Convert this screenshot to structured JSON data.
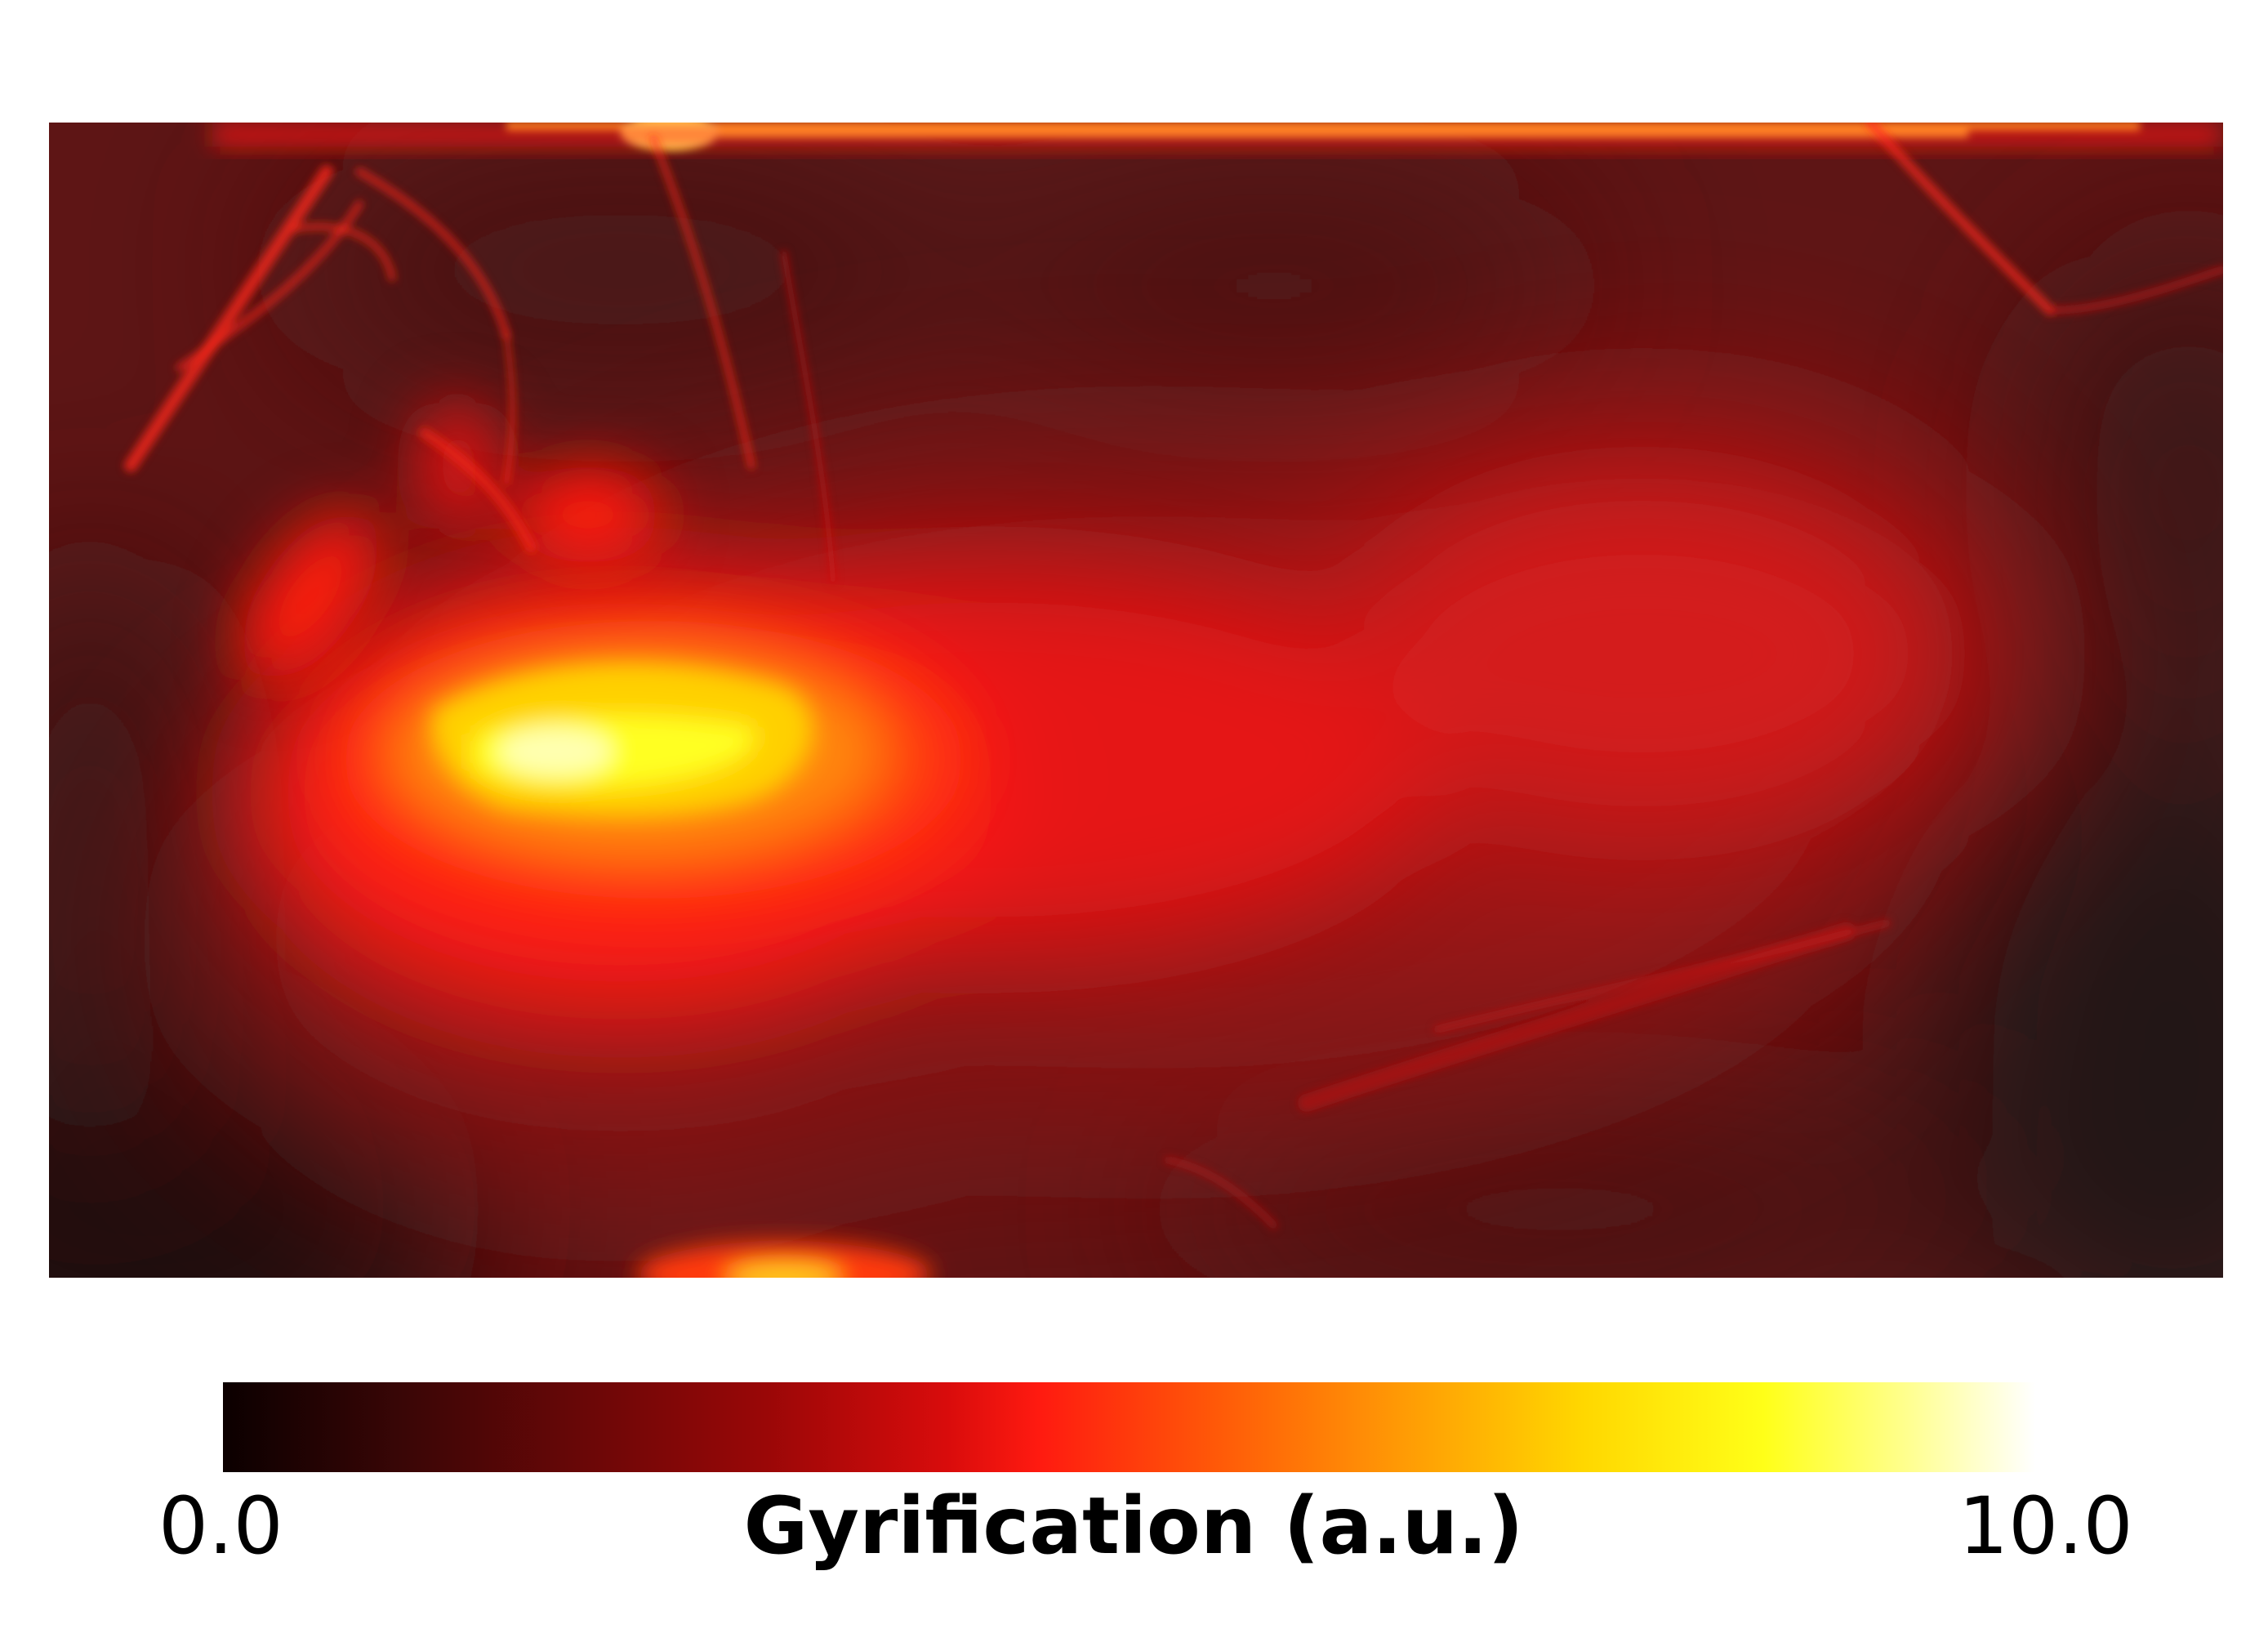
{
  "chart_data": {
    "type": "heatmap",
    "title": "",
    "xlabel": "",
    "ylabel": "",
    "colormap": "hot",
    "colorbar": {
      "label": "Gyrification (a.u.)",
      "min_label": "0.0",
      "max_label": "10.0",
      "range": [
        0.0,
        10.0
      ],
      "orientation": "horizontal",
      "stops": [
        {
          "value": 0.0,
          "color": "#0b0000"
        },
        {
          "value": 1.0,
          "color": "#3a0606"
        },
        {
          "value": 2.0,
          "color": "#6a0707"
        },
        {
          "value": 3.0,
          "color": "#9a0707"
        },
        {
          "value": 4.0,
          "color": "#d90c0c"
        },
        {
          "value": 4.5,
          "color": "#ff1a10"
        },
        {
          "value": 5.5,
          "color": "#ff5a08"
        },
        {
          "value": 6.5,
          "color": "#ff9a05"
        },
        {
          "value": 7.5,
          "color": "#ffd700"
        },
        {
          "value": 8.5,
          "color": "#ffff18"
        },
        {
          "value": 9.3,
          "color": "#ffff90"
        },
        {
          "value": 10.0,
          "color": "#ffffff"
        }
      ]
    },
    "regions": [
      {
        "name": "left-hotspot-core",
        "value": 8.8
      },
      {
        "name": "left-hotspot-halo",
        "value": 6.5
      },
      {
        "name": "central-band",
        "value": 4.5
      },
      {
        "name": "right-central-region",
        "value": 4.0
      },
      {
        "name": "top-edge-ridge",
        "value": 8.5
      },
      {
        "name": "bottom-edge-spot",
        "value": 6.0
      },
      {
        "name": "background",
        "value": 2.5
      },
      {
        "name": "dark-corners",
        "value": 1.0
      }
    ]
  }
}
